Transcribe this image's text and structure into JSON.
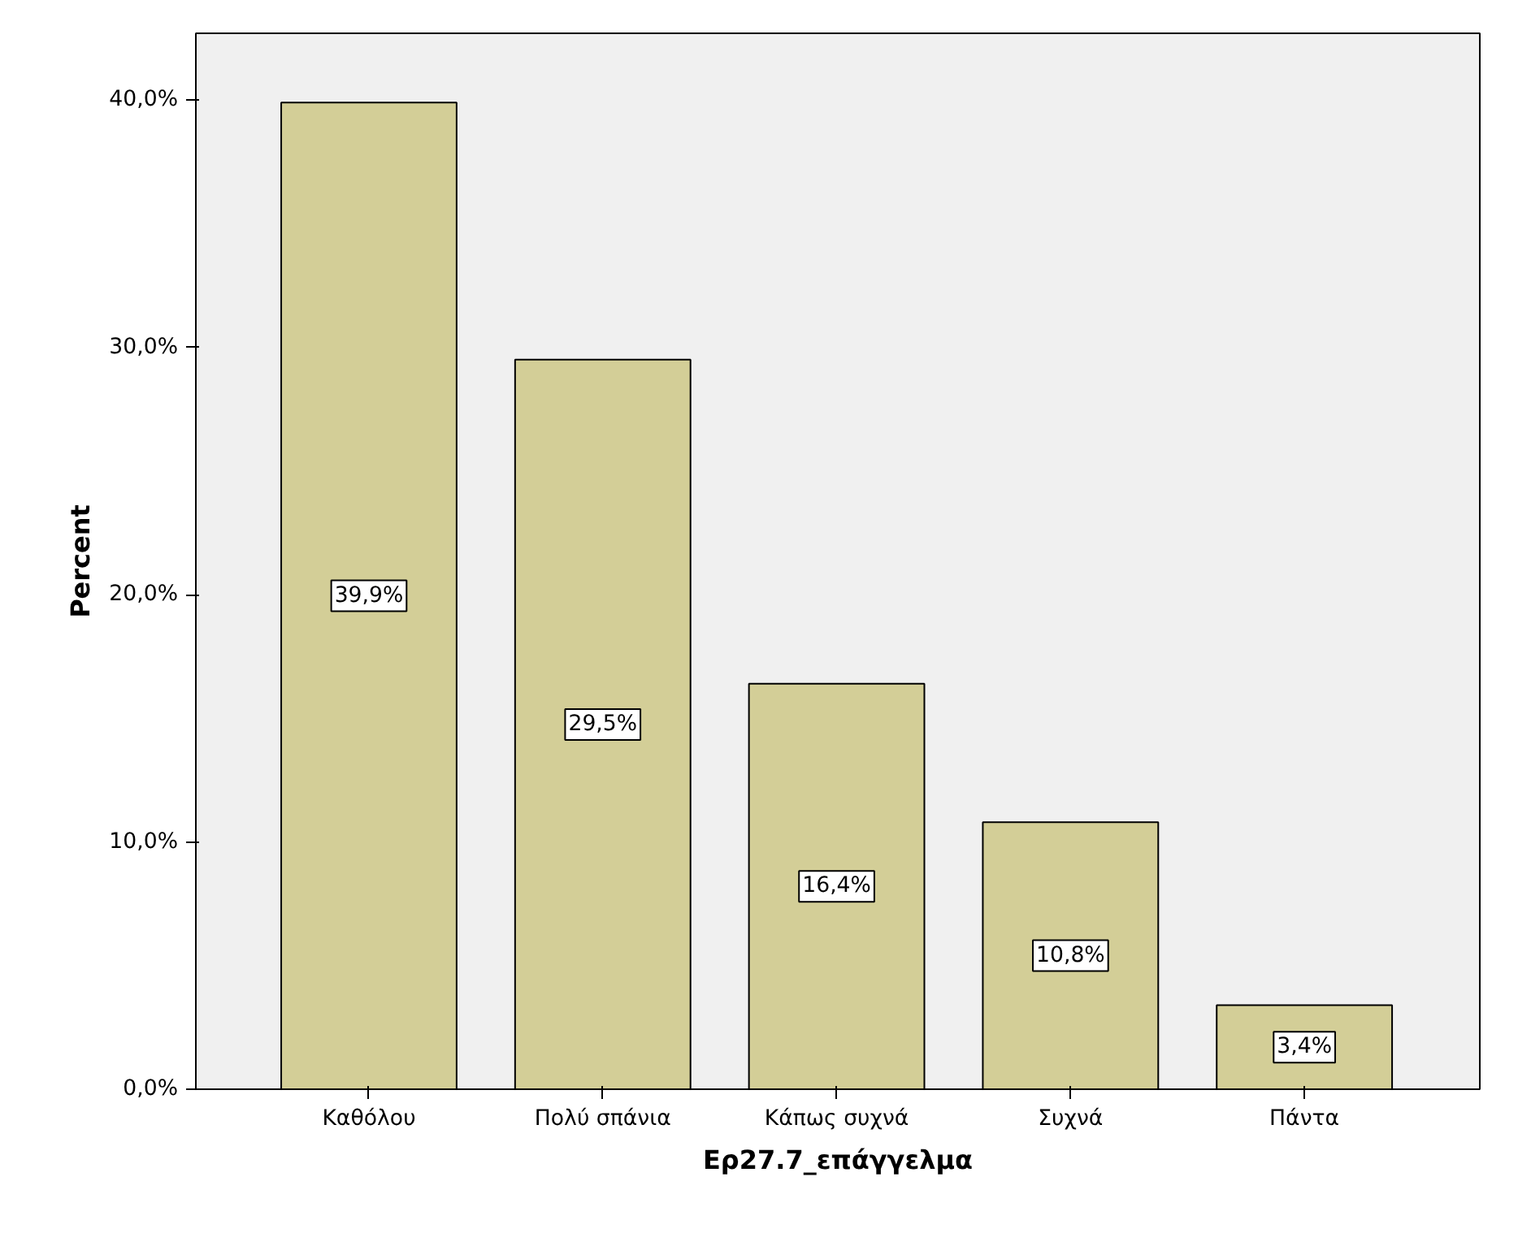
{
  "chart_data": {
    "type": "bar",
    "xlabel": "Ερ27.7_επάγγελμα",
    "ylabel": "Percent",
    "categories": [
      "Καθόλου",
      "Πολύ σπάνια",
      "Κάπως συχνά",
      "Συχνά",
      "Πάντα"
    ],
    "values": [
      39.9,
      29.5,
      16.4,
      10.8,
      3.4
    ],
    "value_labels": [
      "39,9%",
      "29,5%",
      "16,4%",
      "10,8%",
      "3,4%"
    ],
    "color": "#d3ce97",
    "ylim": [
      0,
      42.7
    ],
    "yticks": [
      {
        "value": 0,
        "label": "0,0%"
      },
      {
        "value": 10,
        "label": "10,0%"
      },
      {
        "value": 20,
        "label": "20,0%"
      },
      {
        "value": 30,
        "label": "30,0%"
      },
      {
        "value": 40,
        "label": "40,0%"
      }
    ],
    "grid": false
  }
}
